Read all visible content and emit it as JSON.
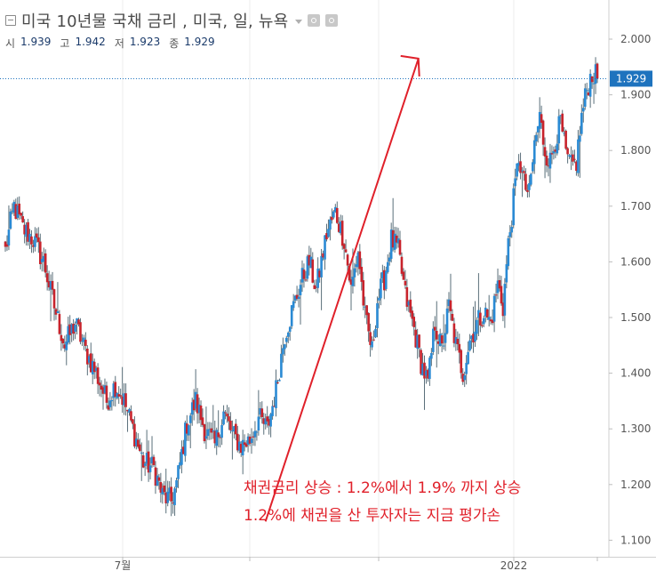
{
  "header": {
    "title": "미국 10년물 국채 금리 , 미국, 일, 뉴욕",
    "ohlc": [
      {
        "label": "시",
        "value": "1.939"
      },
      {
        "label": "고",
        "value": "1.942"
      },
      {
        "label": "저",
        "value": "1.923"
      },
      {
        "label": "종",
        "value": "1.929"
      }
    ]
  },
  "chart_data": {
    "type": "candlestick",
    "ylim": [
      1.06,
      2.08
    ],
    "y_ticks": [
      "2.000",
      "1.900",
      "1.800",
      "1.700",
      "1.600",
      "1.500",
      "1.400",
      "1.300",
      "1.200",
      "1.100"
    ],
    "x_labels": [
      "7월",
      "2022"
    ],
    "last_price": {
      "value": 1.929,
      "label": "1.929"
    },
    "annotation": {
      "line1": "채권금리 상승 : 1.2%에서 1.9% 까지 상승",
      "line2": "1.2%에 채권을 산 투자자는 지금 평가손"
    },
    "trend_arrow": {
      "from": {
        "index": 150,
        "value": 1.14
      },
      "to": {
        "index": 234,
        "value": 1.965
      }
    },
    "colors": {
      "up": "#2a8ad4",
      "down": "#c8232c",
      "annotation": "#e0202a",
      "price_tag": "#1e73be",
      "grid": "#ececec"
    },
    "anchors": [
      [
        0,
        1.62
      ],
      [
        5,
        1.7
      ],
      [
        10,
        1.66
      ],
      [
        16,
        1.64
      ],
      [
        22,
        1.6
      ],
      [
        28,
        1.52
      ],
      [
        34,
        1.45
      ],
      [
        40,
        1.49
      ],
      [
        46,
        1.44
      ],
      [
        52,
        1.4
      ],
      [
        58,
        1.35
      ],
      [
        63,
        1.38
      ],
      [
        68,
        1.35
      ],
      [
        73,
        1.3
      ],
      [
        79,
        1.24
      ],
      [
        85,
        1.23
      ],
      [
        90,
        1.18
      ],
      [
        95,
        1.17
      ],
      [
        98,
        1.2
      ],
      [
        104,
        1.31
      ],
      [
        109,
        1.35
      ],
      [
        114,
        1.3
      ],
      [
        120,
        1.27
      ],
      [
        125,
        1.33
      ],
      [
        130,
        1.29
      ],
      [
        135,
        1.27
      ],
      [
        140,
        1.28
      ],
      [
        145,
        1.32
      ],
      [
        150,
        1.3
      ],
      [
        155,
        1.37
      ],
      [
        160,
        1.47
      ],
      [
        165,
        1.52
      ],
      [
        170,
        1.57
      ],
      [
        174,
        1.6
      ],
      [
        178,
        1.55
      ],
      [
        184,
        1.65
      ],
      [
        189,
        1.69
      ],
      [
        194,
        1.64
      ],
      [
        198,
        1.55
      ],
      [
        202,
        1.62
      ],
      [
        206,
        1.5
      ],
      [
        210,
        1.44
      ],
      [
        213,
        1.53
      ],
      [
        217,
        1.57
      ],
      [
        221,
        1.64
      ],
      [
        225,
        1.62
      ],
      [
        229,
        1.54
      ],
      [
        234,
        1.48
      ],
      [
        238,
        1.42
      ],
      [
        242,
        1.38
      ],
      [
        246,
        1.49
      ],
      [
        250,
        1.44
      ],
      [
        254,
        1.52
      ],
      [
        258,
        1.45
      ],
      [
        262,
        1.4
      ],
      [
        266,
        1.46
      ],
      [
        270,
        1.49
      ],
      [
        274,
        1.51
      ],
      [
        278,
        1.49
      ],
      [
        282,
        1.56
      ],
      [
        285,
        1.52
      ],
      [
        288,
        1.63
      ],
      [
        291,
        1.71
      ],
      [
        294,
        1.79
      ],
      [
        297,
        1.74
      ],
      [
        300,
        1.72
      ],
      [
        303,
        1.81
      ],
      [
        306,
        1.86
      ],
      [
        309,
        1.8
      ],
      [
        312,
        1.78
      ],
      [
        315,
        1.82
      ],
      [
        318,
        1.85
      ],
      [
        321,
        1.79
      ],
      [
        324,
        1.77
      ],
      [
        327,
        1.78
      ],
      [
        330,
        1.86
      ],
      [
        333,
        1.91
      ],
      [
        336,
        1.94
      ],
      [
        339,
        1.929
      ]
    ]
  }
}
